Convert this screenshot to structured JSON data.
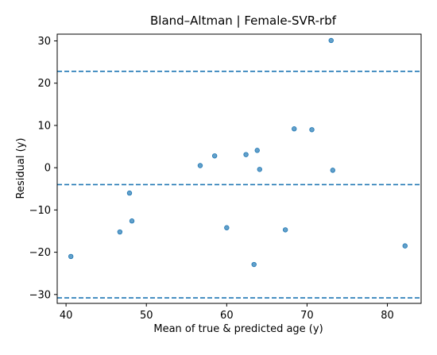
{
  "chart_data": {
    "type": "scatter",
    "title": "Bland–Altman | Female-SVR-rbf",
    "xlabel": "Mean of true & predicted age (y)",
    "ylabel": "Residual (y)",
    "xlim": [
      38.9,
      84.2
    ],
    "ylim": [
      -32.1,
      31.6
    ],
    "xticks": [
      40,
      50,
      60,
      70,
      80
    ],
    "yticks": [
      -30,
      -20,
      -10,
      0,
      10,
      20,
      30
    ],
    "grid": false,
    "points": [
      {
        "x": 40.6,
        "y": -21.0
      },
      {
        "x": 46.7,
        "y": -15.2
      },
      {
        "x": 47.9,
        "y": -6.0
      },
      {
        "x": 48.2,
        "y": -12.6
      },
      {
        "x": 56.7,
        "y": 0.5
      },
      {
        "x": 58.5,
        "y": 2.8
      },
      {
        "x": 60.0,
        "y": -14.2
      },
      {
        "x": 62.4,
        "y": 3.1
      },
      {
        "x": 63.4,
        "y": -22.9
      },
      {
        "x": 63.8,
        "y": 4.1
      },
      {
        "x": 64.1,
        "y": -0.4
      },
      {
        "x": 67.3,
        "y": -14.7
      },
      {
        "x": 68.4,
        "y": 9.2
      },
      {
        "x": 70.6,
        "y": 9.0
      },
      {
        "x": 73.0,
        "y": 30.1
      },
      {
        "x": 73.2,
        "y": -0.6
      },
      {
        "x": 82.2,
        "y": -18.5
      }
    ],
    "reference_lines": [
      {
        "y": 22.8
      },
      {
        "y": -4.0
      },
      {
        "y": -30.8
      }
    ],
    "colors": {
      "points": "#1f77b4",
      "lines": "#1f77b4"
    }
  }
}
